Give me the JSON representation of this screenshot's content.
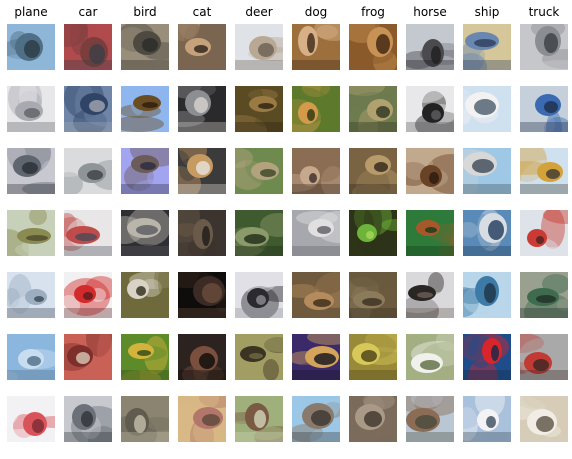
{
  "figure": {
    "classes": [
      {
        "label": "plane",
        "samples": [
          {
            "subject": "airplane flying in blue sky",
            "colors": [
              "#8fb6d8",
              "#4f6f86",
              "#2d3b45"
            ]
          },
          {
            "subject": "white aircraft",
            "colors": [
              "#e7e7ea",
              "#a9a9b1",
              "#5f6168"
            ]
          },
          {
            "subject": "dark airplane over field",
            "colors": [
              "#c8c8d0",
              "#5f6670",
              "#2b2e35"
            ]
          },
          {
            "subject": "old biplane",
            "colors": [
              "#c7d0b8",
              "#8a8b52",
              "#4e4a2b"
            ]
          },
          {
            "subject": "jet in pale sky",
            "colors": [
              "#d8e2ee",
              "#9caebf",
              "#3b4652"
            ]
          },
          {
            "subject": "plane in blue sky",
            "colors": [
              "#8bb7de",
              "#c9ddf0",
              "#506e87"
            ]
          },
          {
            "subject": "red plane on white",
            "colors": [
              "#f2f2f5",
              "#d9545a",
              "#7a2a34"
            ]
          }
        ]
      },
      {
        "label": "car",
        "samples": [
          {
            "subject": "red cars",
            "colors": [
              "#b04a4d",
              "#7a3f3d",
              "#3c3f47"
            ]
          },
          {
            "subject": "blue car",
            "colors": [
              "#6f86a8",
              "#2f4466",
              "#a2a8b1"
            ]
          },
          {
            "subject": "white car",
            "colors": [
              "#dadbdd",
              "#8f9498",
              "#3d4147"
            ]
          },
          {
            "subject": "white car with red stripe",
            "colors": [
              "#e8e6e6",
              "#c04b4b",
              "#4a4a56"
            ]
          },
          {
            "subject": "red car",
            "colors": [
              "#f1f1f1",
              "#d32a2b",
              "#5b1d1f"
            ]
          },
          {
            "subject": "car front in red",
            "colors": [
              "#c96157",
              "#7e2f2b",
              "#d8c9b5"
            ]
          },
          {
            "subject": "silver car",
            "colors": [
              "#c7c9ce",
              "#6b7079",
              "#2f333a"
            ]
          }
        ]
      },
      {
        "label": "bird",
        "samples": [
          {
            "subject": "bird on rock",
            "colors": [
              "#9a8f7a",
              "#4e4a42",
              "#2b2a28"
            ]
          },
          {
            "subject": "bird in sky",
            "colors": [
              "#8fb6ee",
              "#6b4d24",
              "#2d1c0d"
            ]
          },
          {
            "subject": "bird on branch",
            "colors": [
              "#a2a5ef",
              "#6b5c5a",
              "#2c2b3f"
            ]
          },
          {
            "subject": "bird on dark background",
            "colors": [
              "#2f2f33",
              "#b9b5aa",
              "#5a5a5f"
            ]
          },
          {
            "subject": "white bird",
            "colors": [
              "#6e6a3b",
              "#d9d2c6",
              "#2d2b17"
            ]
          },
          {
            "subject": "yellow bird on post",
            "colors": [
              "#5d8b2a",
              "#d4b33c",
              "#2d4718"
            ]
          },
          {
            "subject": "grey bird",
            "colors": [
              "#8a8470",
              "#5f5b4f",
              "#c4beaa"
            ]
          }
        ]
      },
      {
        "label": "cat",
        "samples": [
          {
            "subject": "cat close-up",
            "colors": [
              "#7b6550",
              "#c6a27c",
              "#2b2219"
            ]
          },
          {
            "subject": "grey cat face",
            "colors": [
              "#2b2b2d",
              "#8d8e92",
              "#d7d3cf"
            ]
          },
          {
            "subject": "tabby cat",
            "colors": [
              "#3b3b3b",
              "#c79a61",
              "#e7e4dc"
            ]
          },
          {
            "subject": "black cat",
            "colors": [
              "#3b342f",
              "#6a5a4a",
              "#1d1a18"
            ]
          },
          {
            "subject": "dark cat",
            "colors": [
              "#0f0d0c",
              "#3b2b24",
              "#6b4d3d"
            ]
          },
          {
            "subject": "black cat",
            "colors": [
              "#2c2320",
              "#7b4f3d",
              "#0e0b0a"
            ]
          },
          {
            "subject": "cat with toy",
            "colors": [
              "#d8b985",
              "#b2766a",
              "#5b4a3b"
            ]
          }
        ]
      },
      {
        "label": "deer",
        "samples": [
          {
            "subject": "deer in snow",
            "colors": [
              "#dfe3e7",
              "#b9a894",
              "#6a5f52"
            ]
          },
          {
            "subject": "deer in woods",
            "colors": [
              "#5a4b24",
              "#9a7a43",
              "#2a2110"
            ]
          },
          {
            "subject": "deer on grass",
            "colors": [
              "#6e8a4f",
              "#b3a27e",
              "#3b4625"
            ]
          },
          {
            "subject": "deer among trees",
            "colors": [
              "#3f5a2e",
              "#8b9a6a",
              "#1f2c16"
            ]
          },
          {
            "subject": "deer silhouette",
            "colors": [
              "#e0e1e6",
              "#2a2a2f",
              "#8d8e95"
            ]
          },
          {
            "subject": "stag",
            "colors": [
              "#a29d63",
              "#3b3422",
              "#6f6a42"
            ]
          },
          {
            "subject": "deer on grass",
            "colors": [
              "#9fb07d",
              "#7a5a43",
              "#d2d6bb"
            ]
          }
        ]
      },
      {
        "label": "dog",
        "samples": [
          {
            "subject": "dog face",
            "colors": [
              "#9d6f3d",
              "#d7b087",
              "#3c2917"
            ]
          },
          {
            "subject": "puppy on grass",
            "colors": [
              "#5d7a2c",
              "#d29a4a",
              "#2a3410"
            ]
          },
          {
            "subject": "dog close-up",
            "colors": [
              "#8b6d55",
              "#c6a88c",
              "#3b2e25"
            ]
          },
          {
            "subject": "white dog",
            "colors": [
              "#a7a8ad",
              "#e1dfe0",
              "#5d5e64"
            ]
          },
          {
            "subject": "dog looking left",
            "colors": [
              "#6f5a3d",
              "#b38b5d",
              "#3a2a19"
            ]
          },
          {
            "subject": "dog on purple cloth",
            "colors": [
              "#3b2a6a",
              "#d3a45a",
              "#12101e"
            ]
          },
          {
            "subject": "dog head",
            "colors": [
              "#9cc7e6",
              "#8a7a6b",
              "#3b3733"
            ]
          }
        ]
      },
      {
        "label": "frog",
        "samples": [
          {
            "subject": "frog close-up",
            "colors": [
              "#8b5a2b",
              "#c99255",
              "#3d2411"
            ]
          },
          {
            "subject": "frog on leaf",
            "colors": [
              "#6d7b4f",
              "#b0a16e",
              "#2d3520"
            ]
          },
          {
            "subject": "frog on rock",
            "colors": [
              "#7a6343",
              "#b89b6a",
              "#2f2619"
            ]
          },
          {
            "subject": "green frog",
            "colors": [
              "#2d3418",
              "#6eb33a",
              "#a8d65a"
            ]
          },
          {
            "subject": "toad",
            "colors": [
              "#6b5a3d",
              "#8c7b5a",
              "#3a3022"
            ]
          },
          {
            "subject": "yellow frog",
            "colors": [
              "#9a8a3a",
              "#d8c85a",
              "#4a4018"
            ]
          },
          {
            "subject": "toad on ground",
            "colors": [
              "#7a6b5a",
              "#a99a88",
              "#3d342b"
            ]
          }
        ]
      },
      {
        "label": "horse",
        "samples": [
          {
            "subject": "horse and rider",
            "colors": [
              "#c4c9cf",
              "#4a4a4f",
              "#1f1f22"
            ]
          },
          {
            "subject": "black horse",
            "colors": [
              "#e8e8ea",
              "#222222",
              "#5f5f62"
            ]
          },
          {
            "subject": "horse head",
            "colors": [
              "#c2a98e",
              "#6a4225",
              "#2c1a0f"
            ]
          },
          {
            "subject": "horse on green",
            "colors": [
              "#2e7a3a",
              "#a5592b",
              "#153a1b"
            ]
          },
          {
            "subject": "rider on horse",
            "colors": [
              "#d9d9dc",
              "#2a2623",
              "#6b5f57"
            ]
          },
          {
            "subject": "white horse",
            "colors": [
              "#a3b082",
              "#f0f0ec",
              "#5d6a3f"
            ]
          },
          {
            "subject": "horse in field",
            "colors": [
              "#b9c6d3",
              "#8b6d55",
              "#4a4a3d"
            ]
          }
        ]
      },
      {
        "label": "ship",
        "samples": [
          {
            "subject": "boats in harbour",
            "colors": [
              "#d6c79b",
              "#6a87b0",
              "#2f3f5f"
            ]
          },
          {
            "subject": "white boat",
            "colors": [
              "#cfe0ef",
              "#f2f2f2",
              "#4a5a6a"
            ]
          },
          {
            "subject": "ship on water",
            "colors": [
              "#9fc8e6",
              "#d8d8d8",
              "#3d4a56"
            ]
          },
          {
            "subject": "blue boat",
            "colors": [
              "#5a8bb8",
              "#d7dde3",
              "#1f3a5a"
            ]
          },
          {
            "subject": "ship at sea",
            "colors": [
              "#b9d6ea",
              "#3d7aa6",
              "#1f3346"
            ]
          },
          {
            "subject": "red speedboat",
            "colors": [
              "#1f4d8a",
              "#d8242b",
              "#0f2a4a"
            ]
          },
          {
            "subject": "white ship",
            "colors": [
              "#a9c2dc",
              "#f3f3f5",
              "#3a4a5a"
            ]
          }
        ]
      },
      {
        "label": "truck",
        "samples": [
          {
            "subject": "white truck",
            "colors": [
              "#c6c7cb",
              "#8a8d92",
              "#3b3e43"
            ]
          },
          {
            "subject": "blue truck",
            "colors": [
              "#c5d0db",
              "#3a6ab2",
              "#1f2f47"
            ]
          },
          {
            "subject": "dump truck",
            "colors": [
              "#cfe0ef",
              "#d3a23b",
              "#3d3a33"
            ]
          },
          {
            "subject": "red fire truck",
            "colors": [
              "#dde3e8",
              "#c93b34",
              "#4a2321"
            ]
          },
          {
            "subject": "green truck",
            "colors": [
              "#9aa08f",
              "#3f6b4e",
              "#22302a"
            ]
          },
          {
            "subject": "red truck",
            "colors": [
              "#a9a9a9",
              "#c23a34",
              "#3a2826"
            ]
          },
          {
            "subject": "white pickup",
            "colors": [
              "#d6cdb8",
              "#f1ede5",
              "#5a5143"
            ]
          }
        ]
      }
    ]
  }
}
